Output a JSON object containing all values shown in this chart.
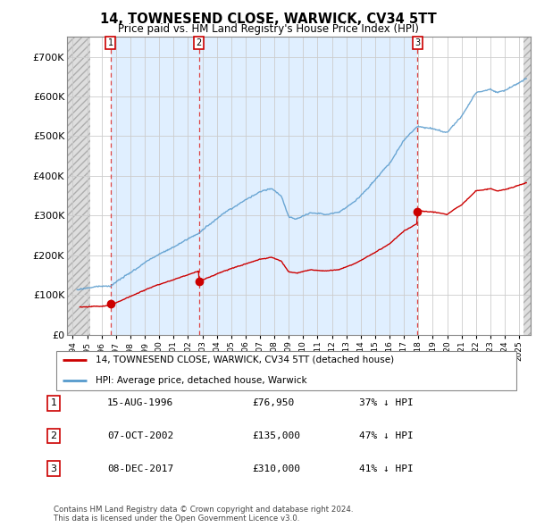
{
  "title": "14, TOWNESEND CLOSE, WARWICK, CV34 5TT",
  "subtitle": "Price paid vs. HM Land Registry's House Price Index (HPI)",
  "ylim": [
    0,
    750000
  ],
  "xlim_start": 1993.6,
  "xlim_end": 2025.8,
  "yticks": [
    0,
    100000,
    200000,
    300000,
    400000,
    500000,
    600000,
    700000
  ],
  "ytick_labels": [
    "£0",
    "£100K",
    "£200K",
    "£300K",
    "£400K",
    "£500K",
    "£600K",
    "£700K"
  ],
  "sale_dates": [
    1996.622,
    2002.769,
    2017.936
  ],
  "sale_prices": [
    76950,
    135000,
    310000
  ],
  "sale_labels": [
    "1",
    "2",
    "3"
  ],
  "legend_red": "14, TOWNESEND CLOSE, WARWICK, CV34 5TT (detached house)",
  "legend_blue": "HPI: Average price, detached house, Warwick",
  "table_rows": [
    [
      "1",
      "15-AUG-1996",
      "£76,950",
      "37% ↓ HPI"
    ],
    [
      "2",
      "07-OCT-2002",
      "£135,000",
      "47% ↓ HPI"
    ],
    [
      "3",
      "08-DEC-2017",
      "£310,000",
      "41% ↓ HPI"
    ]
  ],
  "footer": "Contains HM Land Registry data © Crown copyright and database right 2024.\nThis data is licensed under the Open Government Licence v3.0.",
  "hpi_color": "#5599cc",
  "price_color": "#cc0000",
  "hatch_bg": "#d8d8d8",
  "shade_color": "#ddeeff",
  "grid_color": "#cccccc"
}
